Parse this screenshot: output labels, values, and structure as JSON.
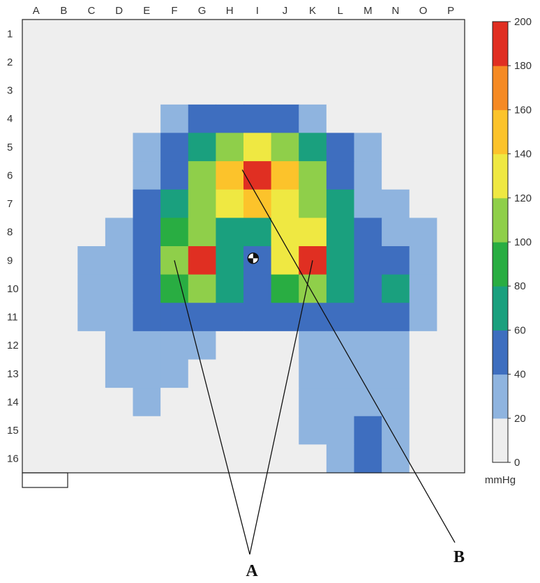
{
  "chart_data": {
    "type": "heatmap",
    "title": "",
    "columns": [
      "A",
      "B",
      "C",
      "D",
      "E",
      "F",
      "G",
      "H",
      "I",
      "J",
      "K",
      "L",
      "M",
      "N",
      "O",
      "P"
    ],
    "rows": [
      "1",
      "2",
      "3",
      "4",
      "5",
      "6",
      "7",
      "8",
      "9",
      "10",
      "11",
      "12",
      "13",
      "14",
      "15",
      "16"
    ],
    "values": [
      [
        0,
        0,
        0,
        0,
        0,
        0,
        0,
        0,
        0,
        0,
        0,
        0,
        0,
        0,
        0,
        0
      ],
      [
        0,
        0,
        0,
        0,
        0,
        0,
        0,
        0,
        0,
        0,
        0,
        0,
        0,
        0,
        0,
        0
      ],
      [
        0,
        0,
        0,
        0,
        10,
        10,
        10,
        10,
        10,
        10,
        10,
        10,
        0,
        0,
        0,
        0
      ],
      [
        0,
        0,
        10,
        10,
        10,
        30,
        50,
        50,
        50,
        50,
        30,
        10,
        10,
        10,
        0,
        0
      ],
      [
        0,
        0,
        10,
        10,
        30,
        50,
        70,
        110,
        130,
        110,
        70,
        50,
        30,
        10,
        10,
        0
      ],
      [
        0,
        0,
        10,
        10,
        30,
        50,
        110,
        150,
        190,
        150,
        110,
        50,
        30,
        10,
        10,
        0
      ],
      [
        0,
        10,
        10,
        10,
        50,
        70,
        110,
        130,
        150,
        130,
        110,
        70,
        30,
        30,
        10,
        0
      ],
      [
        0,
        10,
        10,
        30,
        50,
        90,
        110,
        70,
        70,
        130,
        130,
        70,
        50,
        30,
        30,
        10
      ],
      [
        0,
        10,
        30,
        30,
        50,
        110,
        190,
        70,
        50,
        130,
        190,
        70,
        50,
        50,
        30,
        10
      ],
      [
        0,
        10,
        30,
        30,
        50,
        90,
        110,
        70,
        50,
        90,
        110,
        70,
        50,
        70,
        30,
        10
      ],
      [
        0,
        10,
        30,
        30,
        50,
        50,
        50,
        50,
        50,
        50,
        50,
        50,
        50,
        50,
        30,
        10
      ],
      [
        0,
        0,
        10,
        30,
        30,
        30,
        30,
        10,
        10,
        10,
        30,
        30,
        30,
        30,
        10,
        0
      ],
      [
        0,
        0,
        10,
        30,
        30,
        30,
        10,
        10,
        10,
        10,
        30,
        30,
        30,
        30,
        10,
        0
      ],
      [
        0,
        0,
        10,
        10,
        30,
        10,
        10,
        10,
        10,
        10,
        30,
        30,
        30,
        30,
        10,
        0
      ],
      [
        0,
        0,
        0,
        10,
        10,
        10,
        10,
        10,
        10,
        10,
        30,
        30,
        50,
        30,
        10,
        0
      ],
      [
        0,
        0,
        0,
        0,
        10,
        10,
        10,
        10,
        0,
        10,
        10,
        30,
        50,
        30,
        10,
        0
      ]
    ],
    "colorbar": {
      "ticks": [
        0,
        20,
        40,
        60,
        80,
        100,
        120,
        140,
        160,
        180,
        200
      ],
      "unit": "mmHg",
      "colors": [
        "#eeeeee",
        "#8fb4df",
        "#3e6ebf",
        "#1aa07e",
        "#29ad42",
        "#8fcf4a",
        "#efe842",
        "#fcc32b",
        "#f58a24",
        "#e02f22"
      ],
      "range": [
        0,
        200
      ]
    },
    "center_of_pressure": {
      "column": "I",
      "row": "9"
    },
    "annotations": [
      {
        "label": "A",
        "points_to": [
          "F9",
          "K9"
        ]
      },
      {
        "label": "B",
        "points_to": [
          "H6"
        ]
      }
    ],
    "grid": false,
    "legend": "right"
  }
}
